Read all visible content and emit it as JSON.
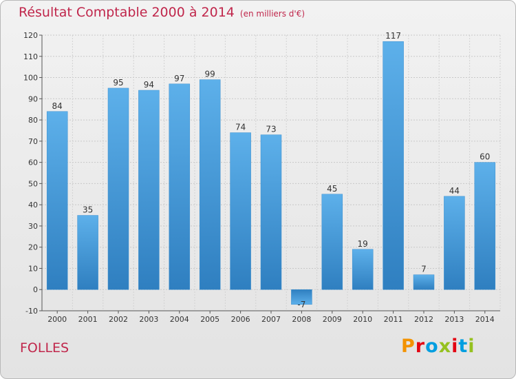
{
  "title": "Résultat Comptable 2000 à 2014",
  "subtitle": "(en milliers d'€)",
  "commune": "FOLLES",
  "logo": {
    "text": "Proxiti",
    "colors": [
      "#f39200",
      "#e30613",
      "#009ee0",
      "#95c11f",
      "#e30613",
      "#009ee0",
      "#95c11f"
    ]
  },
  "colors": {
    "bar": "#4c9fdb",
    "title": "#c0264b",
    "grid": "#c8c8c8"
  },
  "chart_data": {
    "type": "bar",
    "title": "Résultat Comptable 2000 à 2014",
    "ylabel": "en milliers d'€",
    "xlabel": "",
    "categories": [
      "2000",
      "2001",
      "2002",
      "2003",
      "2004",
      "2005",
      "2006",
      "2007",
      "2008",
      "2009",
      "2010",
      "2011",
      "2012",
      "2013",
      "2014"
    ],
    "values": [
      84,
      35,
      95,
      94,
      97,
      99,
      74,
      73,
      -7,
      45,
      19,
      117,
      7,
      44,
      60
    ],
    "ylim": [
      -10,
      120
    ],
    "yticks": [
      -10,
      0,
      10,
      20,
      30,
      40,
      50,
      60,
      70,
      80,
      90,
      100,
      110,
      120
    ],
    "grid": true
  }
}
